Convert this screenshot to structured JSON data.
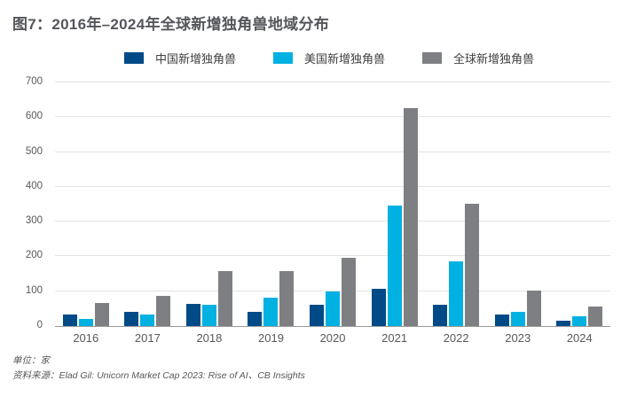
{
  "title": "图7：2016年–2024年全球新增独角兽地域分布",
  "footer": {
    "unit_note": "单位：家",
    "source_note": "资料来源：Elad Gil: Unicorn Market Cap 2023: Rise of AI、CB Insights"
  },
  "colors": {
    "title_text": "#54565b",
    "china_bar": "#004b87",
    "us_bar": "#00b1e2",
    "global_bar": "#7d7f83",
    "gridline": "#e3e3e3",
    "axis_line": "#9a9a9a",
    "tick_text": "#595959"
  },
  "chart_data": {
    "type": "bar",
    "title": "图7：2016年–2024年全球新增独角兽地域分布",
    "categories": [
      "2016",
      "2017",
      "2018",
      "2019",
      "2020",
      "2021",
      "2022",
      "2023",
      "2024"
    ],
    "series": [
      {
        "name": "中国新增独角兽",
        "key": "china",
        "color": "#004b87",
        "values": [
          33,
          42,
          64,
          41,
          60,
          108,
          60,
          33,
          15
        ]
      },
      {
        "name": "美国新增独角兽",
        "key": "us",
        "color": "#00b1e2",
        "values": [
          20,
          32,
          62,
          82,
          99,
          345,
          187,
          42,
          29
        ]
      },
      {
        "name": "全球新增独角兽",
        "key": "global",
        "color": "#7d7f83",
        "values": [
          65,
          87,
          158,
          158,
          196,
          625,
          351,
          103,
          57
        ]
      }
    ],
    "xlabel": "",
    "ylabel": "",
    "ylim": [
      0,
      700
    ],
    "ytick_step": 100,
    "grid": true,
    "legend_position": "top",
    "unit": "家"
  }
}
